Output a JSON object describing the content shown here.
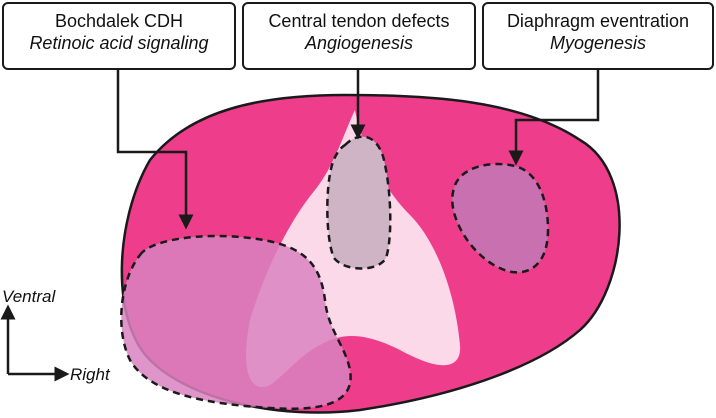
{
  "callouts": [
    {
      "title": "Bochdalek CDH",
      "subtitle": "Retinoic acid signaling"
    },
    {
      "title": "Central tendon defects",
      "subtitle": "Angiogenesis"
    },
    {
      "title": "Diaphragm eventration",
      "subtitle": "Myogenesis"
    }
  ],
  "axes": {
    "vertical": "Ventral",
    "horizontal": "Right"
  },
  "colors": {
    "muscle": "#ee3d8b",
    "tendon": "#fcd9e8",
    "bochdalek_region": "#d982c0",
    "tendon_defect_region": "#cfb4c6",
    "eventration_region": "#c970b0",
    "outline": "#1a1a1a"
  }
}
